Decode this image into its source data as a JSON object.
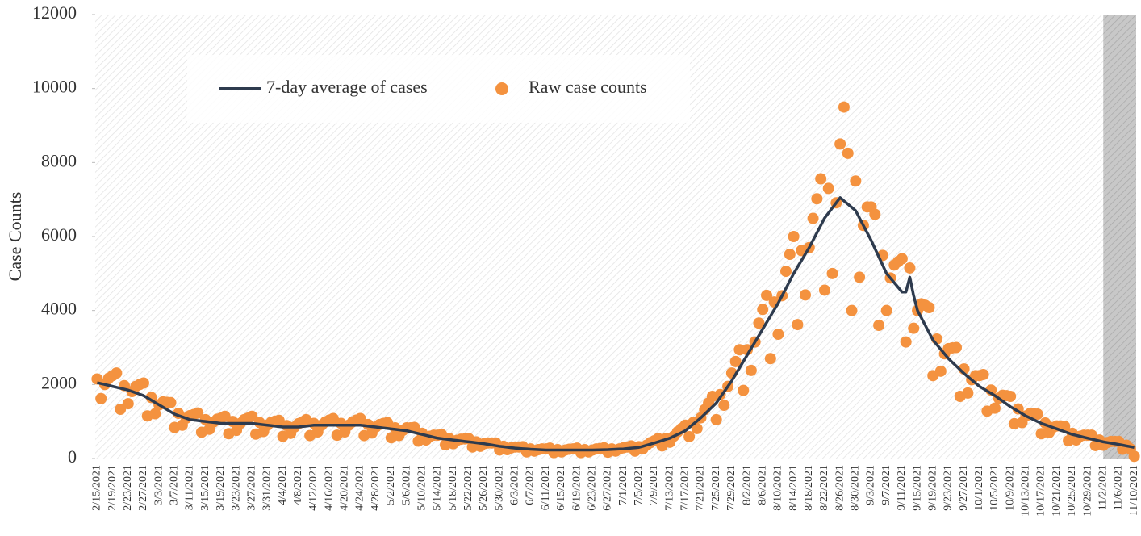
{
  "chart_data": {
    "type": "line",
    "ylabel": "Case Counts",
    "ylim": [
      0,
      12000
    ],
    "yticks": [
      0,
      2000,
      4000,
      6000,
      8000,
      10000,
      12000
    ],
    "legend": "upper left",
    "categories": [
      "2/15/2021",
      null,
      null,
      null,
      "2/19/2021",
      null,
      null,
      null,
      "2/23/2021",
      null,
      null,
      null,
      "2/27/2021",
      null,
      null,
      null,
      "3/3/2021",
      null,
      null,
      null,
      "3/7/2021",
      null,
      null,
      null,
      "3/11/2021",
      null,
      null,
      null,
      "3/15/2021",
      null,
      null,
      null,
      "3/19/2021",
      null,
      null,
      null,
      "3/23/2021",
      null,
      null,
      null,
      "3/27/2021",
      null,
      null,
      null,
      "3/31/2021",
      null,
      null,
      null,
      "4/4/2021",
      null,
      null,
      null,
      "4/8/2021",
      null,
      null,
      null,
      "4/12/2021",
      null,
      null,
      null,
      "4/16/2021",
      null,
      null,
      null,
      "4/20/2021",
      null,
      null,
      null,
      "4/24/2021",
      null,
      null,
      null,
      "4/28/2021",
      null,
      null,
      null,
      "5/2/2021",
      null,
      null,
      null,
      "5/6/2021",
      null,
      null,
      null,
      "5/10/2021",
      null,
      null,
      null,
      "5/14/2021",
      null,
      null,
      null,
      "5/18/2021",
      null,
      null,
      null,
      "5/22/2021",
      null,
      null,
      null,
      "5/26/2021",
      null,
      null,
      null,
      "5/30/2021",
      null,
      null,
      null,
      "6/3/2021",
      null,
      null,
      null,
      "6/7/2021",
      null,
      null,
      null,
      "6/11/2021",
      null,
      null,
      null,
      "6/15/2021",
      null,
      null,
      null,
      "6/19/2021",
      null,
      null,
      null,
      "6/23/2021",
      null,
      null,
      null,
      "6/27/2021",
      null,
      null,
      null,
      "7/1/2021",
      null,
      null,
      null,
      "7/5/2021",
      null,
      null,
      null,
      "7/9/2021",
      null,
      null,
      null,
      "7/13/2021",
      null,
      null,
      null,
      "7/17/2021",
      null,
      null,
      null,
      "7/21/2021",
      null,
      null,
      null,
      "7/25/2021",
      null,
      null,
      null,
      "7/29/2021",
      null,
      null,
      null,
      "8/2/2021",
      null,
      null,
      null,
      "8/6/2021",
      null,
      null,
      null,
      "8/10/2021",
      null,
      null,
      null,
      "8/14/2021",
      null,
      null,
      null,
      "8/18/2021",
      null,
      null,
      null,
      "8/22/2021",
      null,
      null,
      null,
      "8/26/2021",
      null,
      null,
      null,
      "8/30/2021",
      null,
      null,
      null,
      "9/3/2021",
      null,
      null,
      null,
      "9/7/2021",
      null,
      null,
      null,
      "9/11/2021",
      null,
      null,
      null,
      "9/15/2021",
      null,
      null,
      null,
      "9/19/2021",
      null,
      null,
      null,
      "9/23/2021",
      null,
      null,
      null,
      "9/27/2021",
      null,
      null,
      null,
      "10/1/2021",
      null,
      null,
      null,
      "10/5/2021",
      null,
      null,
      null,
      "10/9/2021",
      null,
      null,
      null,
      "10/13/2021",
      null,
      null,
      null,
      "10/17/2021",
      null,
      null,
      null,
      "10/21/2021",
      null,
      null,
      null,
      "10/25/2021",
      null,
      null,
      null,
      "10/29/2021",
      null,
      null,
      null,
      "11/2/2021",
      null,
      null,
      null,
      "11/6/2021",
      null,
      null,
      null,
      "11/10/2021"
    ],
    "series": [
      {
        "name": "7-day average of cases",
        "type": "line",
        "color": "#2e3b4e",
        "values": [
          2050,
          2025,
          2000,
          1975,
          1950,
          1925,
          1900,
          1875,
          1850,
          1812,
          1775,
          1738,
          1700,
          1638,
          1575,
          1512,
          1450,
          1388,
          1325,
          1262,
          1200,
          1162,
          1125,
          1088,
          1050,
          1038,
          1025,
          1012,
          1000,
          988,
          975,
          962,
          950,
          950,
          950,
          950,
          950,
          950,
          950,
          950,
          950,
          938,
          925,
          912,
          900,
          888,
          875,
          862,
          850,
          850,
          850,
          850,
          850,
          862,
          875,
          888,
          900,
          900,
          900,
          900,
          900,
          900,
          900,
          900,
          900,
          900,
          900,
          900,
          900,
          888,
          875,
          862,
          850,
          838,
          825,
          812,
          800,
          788,
          775,
          762,
          750,
          725,
          700,
          675,
          650,
          625,
          600,
          575,
          550,
          538,
          525,
          512,
          500,
          488,
          475,
          462,
          450,
          438,
          425,
          412,
          400,
          382,
          365,
          348,
          330,
          318,
          305,
          292,
          280,
          272,
          265,
          258,
          250,
          245,
          240,
          235,
          230,
          230,
          230,
          230,
          230,
          230,
          230,
          230,
          230,
          230,
          230,
          230,
          230,
          232,
          235,
          238,
          240,
          245,
          250,
          255,
          260,
          270,
          280,
          290,
          300,
          330,
          360,
          390,
          420,
          452,
          485,
          518,
          550,
          600,
          650,
          700,
          750,
          838,
          925,
          1012,
          1100,
          1200,
          1300,
          1400,
          1500,
          1650,
          1800,
          1950,
          2100,
          2275,
          2450,
          2625,
          2800,
          2975,
          3150,
          3325,
          3500,
          3675,
          3850,
          4025,
          4200,
          4400,
          4600,
          4800,
          5000,
          5175,
          5350,
          5525,
          5700,
          5900,
          6100,
          6300,
          6500,
          6638,
          6775,
          6912,
          7050,
          6962,
          6875,
          6788,
          6700,
          6500,
          6300,
          6100,
          5900,
          5675,
          5450,
          5225,
          5000,
          4875,
          4750,
          4625,
          4500,
          4500,
          4900,
          4400,
          4000,
          3800,
          3600,
          3400,
          3200,
          3075,
          2950,
          2825,
          2700,
          2600,
          2500,
          2400,
          2300,
          2212,
          2125,
          2038,
          1950,
          1888,
          1825,
          1762,
          1700,
          1625,
          1550,
          1475,
          1400,
          1338,
          1275,
          1212,
          1150,
          1100,
          1050,
          1000,
          950,
          912,
          875,
          838,
          800,
          762,
          725,
          688,
          650,
          625,
          600,
          575,
          550,
          525,
          500,
          475,
          450,
          432,
          415,
          398,
          380,
          360,
          340,
          320,
          300
        ]
      },
      {
        "name": "Raw case counts",
        "type": "scatter",
        "color": "#f4923f",
        "values": [
          2150,
          1620,
          2000,
          2170,
          2240,
          2310,
          1330,
          1970,
          1480,
          1810,
          1950,
          2000,
          2040,
          1150,
          1650,
          1210,
          1450,
          1530,
          1520,
          1510,
          840,
          1220,
          900,
          1090,
          1160,
          1190,
          1230,
          710,
          1050,
          790,
          980,
          1060,
          1090,
          1140,
          670,
          1000,
          760,
          950,
          1050,
          1090,
          1140,
          660,
          970,
          730,
          900,
          980,
          1010,
          1030,
          600,
          890,
          680,
          850,
          940,
          990,
          1050,
          620,
          950,
          720,
          900,
          990,
          1040,
          1080,
          630,
          950,
          720,
          900,
          990,
          1040,
          1080,
          620,
          920,
          690,
          850,
          920,
          950,
          970,
          560,
          830,
          620,
          760,
          830,
          830,
          840,
          470,
          680,
          500,
          600,
          630,
          630,
          650,
          370,
          540,
          400,
          490,
          520,
          530,
          540,
          310,
          450,
          330,
          400,
          420,
          420,
          420,
          230,
          330,
          240,
          290,
          310,
          310,
          320,
          180,
          260,
          200,
          240,
          260,
          260,
          280,
          160,
          240,
          180,
          230,
          250,
          260,
          280,
          160,
          240,
          180,
          230,
          260,
          270,
          290,
          170,
          260,
          200,
          260,
          290,
          310,
          340,
          200,
          320,
          260,
          360,
          430,
          480,
          540,
          340,
          540,
          440,
          600,
          720,
          810,
          900,
          590,
          970,
          810,
          1100,
          1320,
          1500,
          1680,
          1050,
          1730,
          1440,
          1950,
          2310,
          2620,
          2940,
          1840,
          2940,
          2380,
          3150,
          3660,
          4030,
          4410,
          2700,
          4230,
          3360,
          4400,
          5060,
          5520,
          6000,
          3620,
          5620,
          4420,
          5700,
          6490,
          7020,
          7560,
          4550,
          7300,
          5000,
          6910,
          8500,
          9500,
          8250,
          4000,
          7500,
          4900,
          6300,
          6800,
          6800,
          6600,
          3600,
          5490,
          4000,
          4880,
          5230,
          5320,
          5400,
          3150,
          5150,
          3520,
          4000,
          4180,
          4140,
          4080,
          2240,
          3230,
          2360,
          2830,
          2970,
          2990,
          3000,
          1680,
          2420,
          1770,
          2130,
          2240,
          2240,
          2270,
          1280,
          1850,
          1360,
          1630,
          1710,
          1700,
          1680,
          940,
          1340,
          970,
          1150,
          1210,
          1210,
          1200,
          670,
          960,
          700,
          840,
          880,
          880,
          870,
          480,
          680,
          500,
          600,
          630,
          630,
          630,
          350,
          500,
          360,
          430,
          460,
          460,
          460,
          250,
          360,
          260,
          60
        ]
      }
    ]
  }
}
